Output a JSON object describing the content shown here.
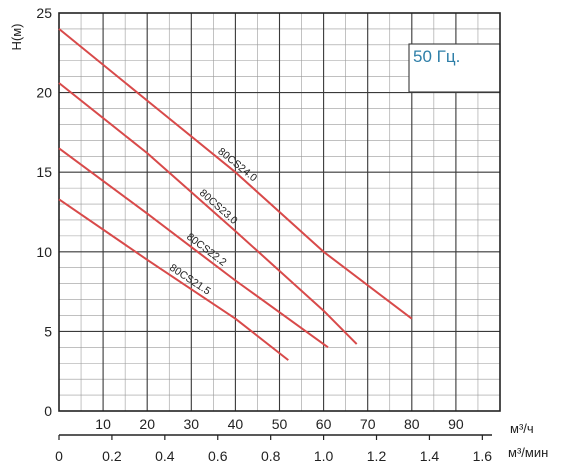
{
  "chart_data": {
    "type": "line",
    "y_axis": {
      "label": "H(м)",
      "ticks": [
        "0",
        "5",
        "10",
        "15",
        "20",
        "25"
      ],
      "ylim": [
        0,
        25
      ]
    },
    "x_axis_top": {
      "unit": "м³/ч",
      "ticks": [
        "10",
        "20",
        "30",
        "40",
        "50",
        "60",
        "70",
        "80",
        "90"
      ],
      "xlim": [
        0,
        100
      ]
    },
    "x_axis_bottom": {
      "unit": "м³/мин",
      "ticks": [
        "0",
        "0.2",
        "0.4",
        "0.6",
        "0.8",
        "1.0",
        "1.2",
        "1.4",
        "1.6"
      ],
      "xlim": [
        0,
        1.6667
      ]
    },
    "annotation": "50 Гц.",
    "grid": true,
    "colors": {
      "curve": "#d84a4a",
      "grid": "#9a9a9a",
      "grid_major": "#3a3a3a",
      "annotation": "#2f7fa8"
    },
    "series": [
      {
        "name": "80CS24.0",
        "x": [
          0,
          20,
          40,
          60,
          80
        ],
        "y": [
          24.0,
          19.5,
          15.0,
          10.0,
          5.8
        ]
      },
      {
        "name": "80CS23.0",
        "x": [
          0,
          20,
          40,
          60,
          67.5
        ],
        "y": [
          20.6,
          16.2,
          11.3,
          6.3,
          4.2
        ]
      },
      {
        "name": "80CS22.2",
        "x": [
          0,
          20,
          40,
          61
        ],
        "y": [
          16.5,
          12.4,
          8.2,
          4.0
        ]
      },
      {
        "name": "80CS21.5",
        "x": [
          0,
          20,
          40,
          52
        ],
        "y": [
          13.3,
          9.5,
          5.8,
          3.2
        ]
      }
    ]
  }
}
